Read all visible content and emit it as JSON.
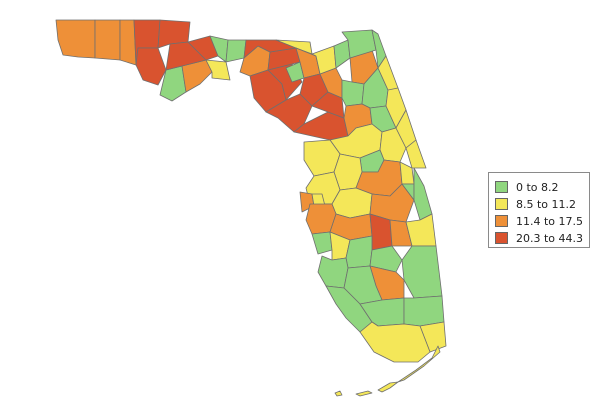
{
  "map": {
    "legend": {
      "items": [
        {
          "label": "0 to 8.2",
          "color": "#90d67f"
        },
        {
          "label": "8.5 to 11.2",
          "color": "#f4e759"
        },
        {
          "label": "11.4 to 17.5",
          "color": "#ee9038"
        },
        {
          "label": "20.3 to 44.3",
          "color": "#d9532f"
        }
      ]
    }
  }
}
